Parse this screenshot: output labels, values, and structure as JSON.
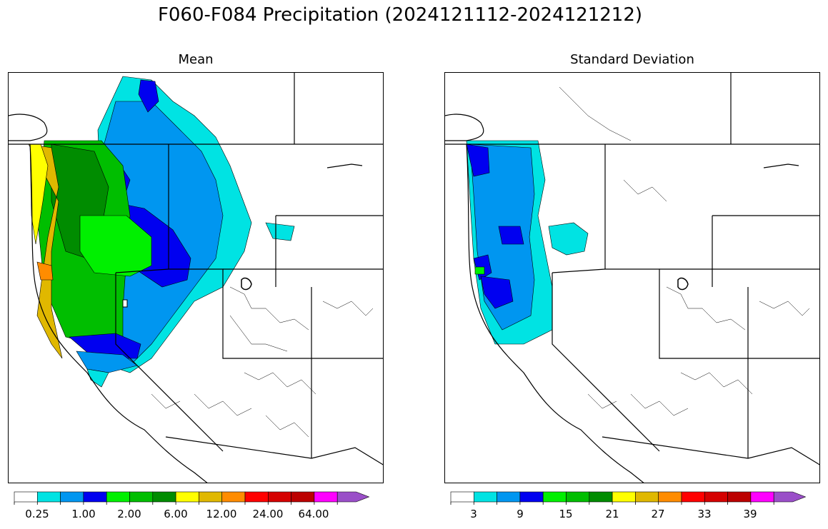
{
  "title": "F060-F084 Precipitation (2024121112-2024121212)",
  "panels": [
    {
      "subtitle": "Mean",
      "colorbar_labels": [
        "0.25",
        "1.00",
        "2.00",
        "6.00",
        "12.00",
        "24.00",
        "64.00"
      ]
    },
    {
      "subtitle": "Standard Deviation",
      "colorbar_labels": [
        "3",
        "9",
        "15",
        "21",
        "27",
        "33",
        "39"
      ]
    }
  ],
  "colorbar_colors": [
    "#ffffff",
    "#00e3e3",
    "#0096f0",
    "#0000f0",
    "#00f000",
    "#00be00",
    "#008c00",
    "#ffff00",
    "#e0b800",
    "#ff8c00",
    "#ff0000",
    "#d50000",
    "#bc0000",
    "#ff00ff",
    "#9a4fc8"
  ]
}
